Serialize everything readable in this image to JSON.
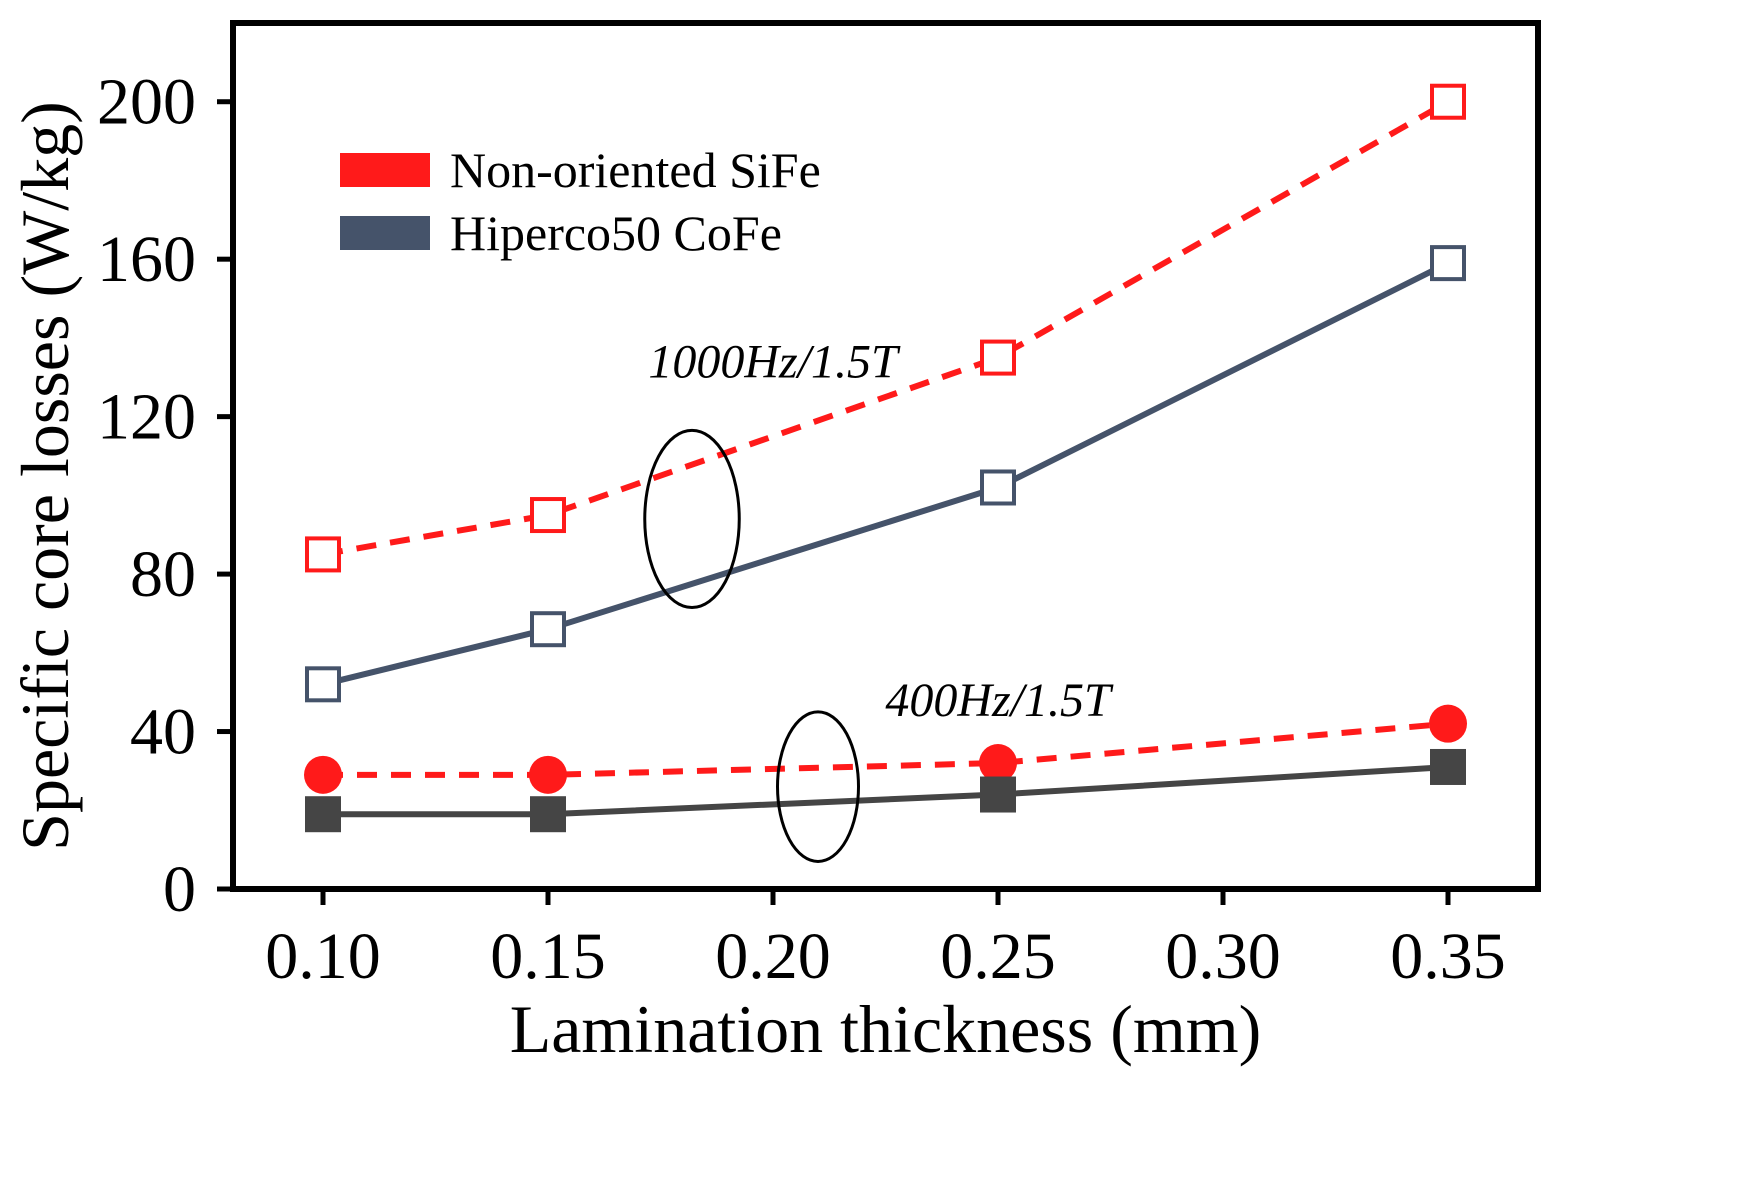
{
  "chart_data": {
    "type": "line",
    "title": "",
    "xlabel": "Lamination thickness (mm)",
    "ylabel": "Specific core losses (W/kg)",
    "xlim": [
      0.08,
      0.37
    ],
    "ylim": [
      0,
      220
    ],
    "x_ticks": [
      "0.10",
      "0.15",
      "0.20",
      "0.25",
      "0.30",
      "0.35"
    ],
    "y_ticks": [
      "0",
      "40",
      "80",
      "120",
      "160",
      "200"
    ],
    "grid": false,
    "legend_position": "top-left",
    "legend": [
      {
        "label": "Non-oriented SiFe",
        "color": "#ff1a1a"
      },
      {
        "label": "Hiperco50 CoFe",
        "color": "#45536a"
      }
    ],
    "series": [
      {
        "name": "Non-oriented SiFe 1000Hz/1.5T",
        "color": "#ff1a1a",
        "style": "dashed",
        "marker": "open-square",
        "x": [
          0.1,
          0.15,
          0.25,
          0.35
        ],
        "y": [
          85,
          95,
          135,
          200
        ]
      },
      {
        "name": "Hiperco50 CoFe 1000Hz/1.5T",
        "color": "#45536a",
        "style": "solid",
        "marker": "open-square",
        "x": [
          0.1,
          0.15,
          0.25,
          0.35
        ],
        "y": [
          52,
          66,
          102,
          159
        ]
      },
      {
        "name": "Non-oriented SiFe 400Hz/1.5T",
        "color": "#ff1a1a",
        "style": "dashed",
        "marker": "filled-circle",
        "x": [
          0.1,
          0.15,
          0.25,
          0.35
        ],
        "y": [
          29,
          29,
          32,
          42
        ]
      },
      {
        "name": "Hiperco50 CoFe 400Hz/1.5T",
        "color": "#454545",
        "style": "solid",
        "marker": "filled-square",
        "x": [
          0.1,
          0.15,
          0.25,
          0.35
        ],
        "y": [
          19,
          19,
          24,
          31
        ]
      }
    ],
    "annotations": [
      {
        "text": "1000Hz/1.5T",
        "x": 0.2,
        "y": 130
      },
      {
        "text": "400Hz/1.5T",
        "x": 0.25,
        "y": 44
      }
    ],
    "ellipses": [
      {
        "group": "1000Hz/1.5T",
        "x": 0.182,
        "y": 94,
        "rx": 0.0105,
        "ry": 22.5
      },
      {
        "group": "400Hz/1.5T",
        "x": 0.21,
        "y": 26,
        "rx": 0.009,
        "ry": 19
      }
    ]
  }
}
